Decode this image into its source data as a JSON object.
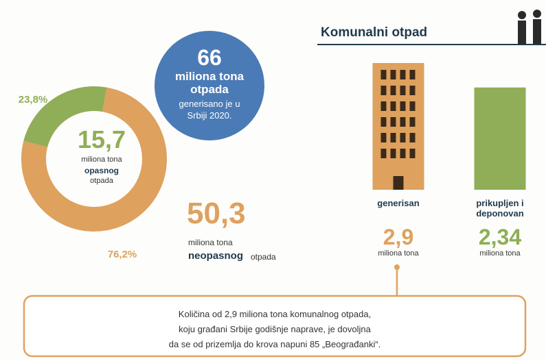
{
  "chart_data": [
    {
      "type": "pie",
      "categories": [
        "opasnog",
        "neopasnog"
      ],
      "values": [
        23.8,
        76.2
      ],
      "value_labels": [
        "23,8%",
        "76,2%"
      ],
      "colors": [
        "#8fae57",
        "#dfa15e"
      ]
    },
    {
      "type": "bar",
      "title": "Komunalni otpad",
      "categories": [
        "generisan",
        "prikupljen i deponovan"
      ],
      "values": [
        2.9,
        2.34
      ],
      "value_labels": [
        "2,9",
        "2,34"
      ],
      "unit_labels": [
        "miliona tona",
        "miliona tona"
      ],
      "colors": [
        "#dfa15e",
        "#8fae57"
      ]
    }
  ],
  "infographic": {
    "total": {
      "number": "66",
      "line1": "miliona tona",
      "line2": "otpada",
      "line3": "generisano je u",
      "line4": "Srbiji 2020."
    },
    "hazardous": {
      "number": "15,7",
      "unit": "miliona tona",
      "bold": "opasnog",
      "tail": "otpada"
    },
    "nonhazardous": {
      "number": "50,3",
      "unit": "miliona tona",
      "bold": "neopasnog",
      "tail": "otpada"
    },
    "note": [
      "Količina od 2,9 miliona tona komunalnog otpada,",
      "koju građani Srbije godišnje naprave, je dovoljna",
      "da se od prizemlja do krova napuni 85 „Beograđanki“."
    ]
  }
}
